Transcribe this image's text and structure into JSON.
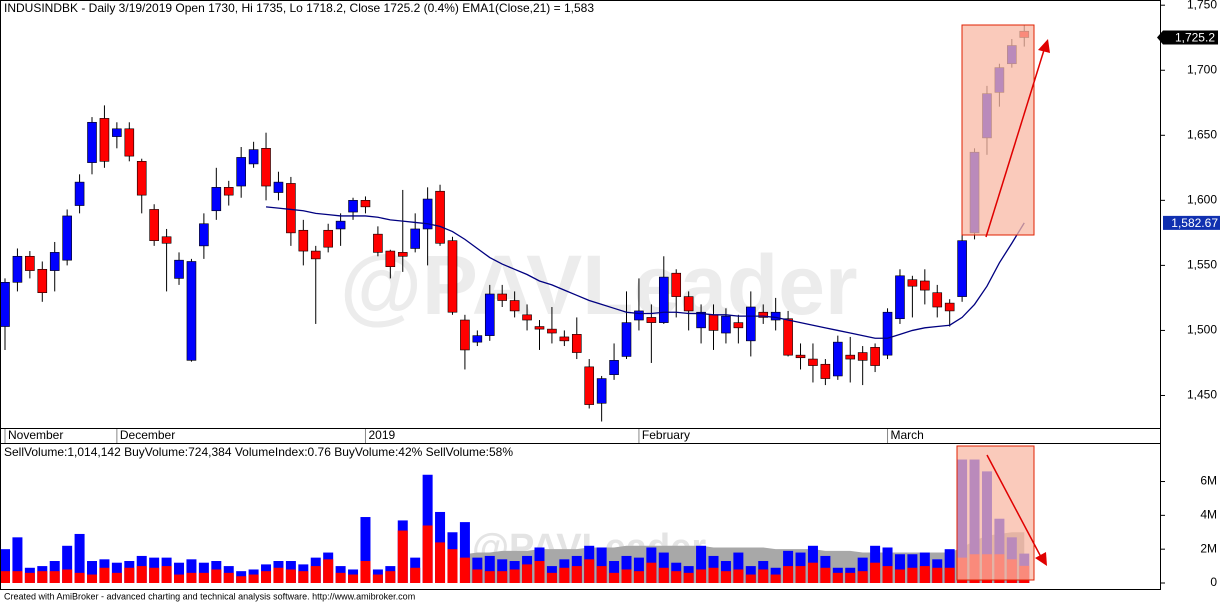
{
  "chart_data": [
    {
      "type": "candlestick",
      "title": "INDUSINDBK - Daily 3/19/2019 Open 1730, Hi 1735, Lo 1718.2, Close 1725.2 (0.4%) EMA1(Close,21) = 1,583",
      "watermark": "@PAVLeader",
      "categories": [
        "November",
        null,
        null,
        null,
        null,
        null,
        null,
        null,
        null,
        "December",
        null,
        null,
        null,
        null,
        null,
        null,
        null,
        null,
        null,
        null,
        null,
        null,
        null,
        null,
        null,
        null,
        null,
        null,
        null,
        "2019",
        null,
        null,
        null,
        null,
        null,
        null,
        null,
        null,
        null,
        null,
        null,
        null,
        null,
        null,
        null,
        null,
        null,
        null,
        null,
        null,
        null,
        "February",
        null,
        null,
        null,
        null,
        null,
        null,
        null,
        null,
        null,
        null,
        null,
        null,
        null,
        null,
        null,
        null,
        null,
        null,
        null,
        "March",
        null,
        null,
        null,
        null,
        null,
        null,
        null,
        null,
        null,
        null,
        null
      ],
      "open": [
        1503,
        1537,
        1557,
        1547,
        1546,
        1554,
        1596,
        1629,
        1663,
        1649,
        1655,
        1630,
        1593,
        1572,
        1540,
        1477,
        1565,
        1592,
        1610,
        1611,
        1628,
        1640,
        1606,
        1613,
        1577,
        1561,
        1577,
        1578,
        1591,
        1600,
        1574,
        1561,
        1560,
        1563,
        1578,
        1607,
        1569,
        1508,
        1491,
        1496,
        1528,
        1523,
        1512,
        1503,
        1501,
        1495,
        1497,
        1472,
        1444,
        1466,
        1480,
        1508,
        1510,
        1506,
        1544,
        1526,
        1502,
        1512,
        1498,
        1506,
        1492,
        1514,
        1508,
        1509,
        1481,
        1478,
        1474,
        1465,
        1481,
        1483,
        1487,
        1481,
        1509,
        1539,
        1538,
        1529,
        1521,
        1526,
        1575,
        1648,
        1683,
        1705,
        1730
      ],
      "high": [
        1540,
        1563,
        1561,
        1553,
        1568,
        1593,
        1620,
        1664,
        1673,
        1660,
        1660,
        1632,
        1597,
        1578,
        1560,
        1555,
        1590,
        1625,
        1615,
        1641,
        1645,
        1652,
        1622,
        1618,
        1585,
        1565,
        1582,
        1590,
        1602,
        1603,
        1580,
        1562,
        1608,
        1590,
        1610,
        1612,
        1572,
        1512,
        1500,
        1535,
        1535,
        1530,
        1520,
        1508,
        1518,
        1500,
        1510,
        1478,
        1465,
        1490,
        1530,
        1540,
        1520,
        1557,
        1547,
        1530,
        1520,
        1520,
        1517,
        1512,
        1530,
        1520,
        1525,
        1515,
        1490,
        1490,
        1478,
        1496,
        1495,
        1488,
        1490,
        1517,
        1547,
        1542,
        1547,
        1535,
        1524,
        1574,
        1640,
        1688,
        1705,
        1724,
        1735
      ],
      "low": [
        1485,
        1530,
        1540,
        1522,
        1530,
        1550,
        1590,
        1620,
        1625,
        1640,
        1630,
        1590,
        1565,
        1530,
        1535,
        1476,
        1555,
        1585,
        1596,
        1602,
        1625,
        1600,
        1600,
        1565,
        1550,
        1505,
        1560,
        1565,
        1585,
        1590,
        1557,
        1540,
        1545,
        1560,
        1550,
        1565,
        1512,
        1470,
        1488,
        1492,
        1518,
        1510,
        1500,
        1485,
        1490,
        1488,
        1478,
        1440,
        1430,
        1462,
        1478,
        1500,
        1475,
        1505,
        1510,
        1500,
        1490,
        1485,
        1490,
        1490,
        1480,
        1505,
        1500,
        1480,
        1470,
        1460,
        1458,
        1462,
        1460,
        1458,
        1468,
        1478,
        1505,
        1510,
        1520,
        1510,
        1503,
        1522,
        1570,
        1635,
        1672,
        1702,
        1718.2
      ],
      "close": [
        1537,
        1557,
        1546,
        1529,
        1560,
        1588,
        1614,
        1660,
        1630,
        1655,
        1634,
        1604,
        1569,
        1567,
        1554,
        1553,
        1582,
        1610,
        1604,
        1633,
        1639,
        1611,
        1614,
        1575,
        1561,
        1555,
        1564,
        1584,
        1600,
        1595,
        1560,
        1549,
        1557,
        1578,
        1601,
        1567,
        1514,
        1485,
        1496,
        1528,
        1523,
        1515,
        1508,
        1501,
        1498,
        1492,
        1483,
        1443,
        1463,
        1477,
        1506,
        1515,
        1506,
        1541,
        1526,
        1515,
        1514,
        1500,
        1511,
        1502,
        1518,
        1510,
        1514,
        1481,
        1479,
        1473,
        1463,
        1491,
        1478,
        1477,
        1473,
        1514,
        1542,
        1534,
        1531,
        1518,
        1515,
        1569,
        1637,
        1682,
        1702,
        1719,
        1725.2
      ],
      "up_color": "#0000ff",
      "down_color": "#ff0000",
      "ema": {
        "color": "#000080",
        "values": [
          null,
          null,
          null,
          null,
          null,
          null,
          null,
          null,
          null,
          null,
          null,
          null,
          null,
          null,
          null,
          null,
          null,
          null,
          null,
          null,
          null,
          1595,
          1594,
          1593,
          1592,
          1590,
          1589,
          1588,
          1588,
          1588,
          1587,
          1585,
          1584,
          1583,
          1582,
          1580,
          1576,
          1570,
          1563,
          1556,
          1551,
          1547,
          1543,
          1538,
          1535,
          1531,
          1527,
          1523,
          1520,
          1517,
          1514,
          1513,
          1513,
          1514,
          1514,
          1513,
          1513,
          1512,
          1512,
          1511,
          1511,
          1511,
          1510,
          1508,
          1506,
          1504,
          1502,
          1500,
          1498,
          1496,
          1494,
          1494,
          1497,
          1500,
          1502,
          1503,
          1504,
          1510,
          1520,
          1534,
          1552,
          1567,
          1582.67
        ]
      },
      "close_label": "1,725.2",
      "ema_label": "1,582.67",
      "ylim": [
        1425,
        1754
      ],
      "yticks": [
        {
          "value": 1450,
          "label": "1,450"
        },
        {
          "value": 1500,
          "label": "1,500"
        },
        {
          "value": 1550,
          "label": "1,550"
        },
        {
          "value": 1600,
          "label": "1,600"
        },
        {
          "value": 1650,
          "label": "1,650"
        },
        {
          "value": 1700,
          "label": "1,700"
        },
        {
          "value": 1750,
          "label": "1,750"
        }
      ]
    },
    {
      "type": "bar",
      "title": "SellVolume:1,014,142 BuyVolume:724,384 VolumeIndex:0.76 BuyVolume:42% SellVolume:58%",
      "watermark": "@PAVLeader",
      "volume": {
        "color": "#0000ff",
        "values": [
          2000000.0,
          2700000.0,
          900000.0,
          1000000.0,
          1300000.0,
          2200000.0,
          2900000.0,
          1300000.0,
          1400000.0,
          1200000.0,
          1300000.0,
          1600000.0,
          1500000.0,
          1500000.0,
          1200000.0,
          1400000.0,
          1200000.0,
          1300000.0,
          1000000.0,
          700000.0,
          800000.0,
          1100000.0,
          1300000.0,
          1300000.0,
          1100000.0,
          1500000.0,
          1800000.0,
          1000000.0,
          800000.0,
          3900000.0,
          800000.0,
          1000000.0,
          3700000.0,
          1500000.0,
          6400000.0,
          4200000.0,
          3000000.0,
          3600000.0,
          1500000.0,
          1600000.0,
          1400000.0,
          1300000.0,
          1600000.0,
          2100000.0,
          1000000.0,
          1400000.0,
          1600000.0,
          2200000.0,
          2100000.0,
          1300000.0,
          1600000.0,
          1500000.0,
          2100000.0,
          1800000.0,
          1200000.0,
          1000000.0,
          2200000.0,
          1600000.0,
          1300000.0,
          1800000.0,
          1000000.0,
          1300000.0,
          900000.0,
          1900000.0,
          1800000.0,
          2200000.0,
          1600000.0,
          900000.0,
          900000.0,
          1500000.0,
          2200000.0,
          2100000.0,
          1700000.0,
          1700000.0,
          1800000.0,
          1400000.0,
          2000000.0,
          7300000.0,
          7300000.0,
          6600000.0,
          3800000.0,
          2700000.0,
          1738526
        ]
      },
      "sell_volume": {
        "color": "#ff0000",
        "values": [
          700000.0,
          700000.0,
          600000.0,
          700000.0,
          700000.0,
          800000.0,
          600000.0,
          500000.0,
          900000.0,
          600000.0,
          900000.0,
          1000000.0,
          900000.0,
          1000000.0,
          500000.0,
          600000.0,
          600000.0,
          800000.0,
          600000.0,
          400000.0,
          500000.0,
          700000.0,
          900000.0,
          800000.0,
          700000.0,
          1000000.0,
          1400000.0,
          600000.0,
          500000.0,
          1300000.0,
          500000.0,
          700000.0,
          3100000.0,
          900000.0,
          3400000.0,
          2400000.0,
          2000000.0,
          1500000.0,
          800000.0,
          700000.0,
          700000.0,
          800000.0,
          1100000.0,
          1300000.0,
          600000.0,
          900000.0,
          1000000.0,
          1400000.0,
          1000000.0,
          600000.0,
          800000.0,
          700000.0,
          1200000.0,
          900000.0,
          700000.0,
          600000.0,
          800000.0,
          900000.0,
          700000.0,
          800000.0,
          500000.0,
          800000.0,
          500000.0,
          1000000.0,
          1000000.0,
          1200000.0,
          900000.0,
          600000.0,
          600000.0,
          700000.0,
          1200000.0,
          1000000.0,
          800000.0,
          900000.0,
          1000000.0,
          900000.0,
          900000.0,
          1500000.0,
          1700000.0,
          1700000.0,
          1700000.0,
          1400000.0,
          1014142
        ]
      },
      "volume_avg": {
        "color": "#a8a8a8",
        "values": [
          null,
          null,
          null,
          null,
          null,
          null,
          null,
          null,
          null,
          null,
          null,
          null,
          null,
          null,
          null,
          null,
          null,
          null,
          null,
          null,
          null,
          null,
          null,
          null,
          null,
          null,
          null,
          null,
          null,
          null,
          null,
          null,
          null,
          null,
          null,
          null,
          null,
          1700000.0,
          1800000.0,
          1800000.0,
          1900000.0,
          1900000.0,
          1900000.0,
          2000000.0,
          2000000.0,
          2000000.0,
          2000000.0,
          2100000.0,
          2100000.0,
          2100000.0,
          2200000.0,
          2200000.0,
          2200000.0,
          2200000.0,
          2200000.0,
          2200000.0,
          2200000.0,
          2100000.0,
          2100000.0,
          2100000.0,
          2100000.0,
          2100000.0,
          2000000.0,
          2000000.0,
          2000000.0,
          2000000.0,
          1900000.0,
          1900000.0,
          1900000.0,
          1800000.0,
          1800000.0,
          1800000.0,
          1800000.0,
          1800000.0,
          1800000.0,
          1800000.0,
          1800000.0,
          2100000.0,
          2500000.0,
          2800000.0,
          2900000.0,
          3000000.0,
          3000000.0
        ]
      },
      "ylim": [
        0,
        8100000.0
      ],
      "yticks": [
        0,
        {
          "value": 2000000.0,
          "label": "2M"
        },
        {
          "value": 4000000.0,
          "label": "4M"
        },
        {
          "value": 6000000.0,
          "label": "6M"
        }
      ]
    }
  ],
  "footer": "Created with AmiBroker - advanced charting and technical analysis software. http://www.amibroker.com"
}
